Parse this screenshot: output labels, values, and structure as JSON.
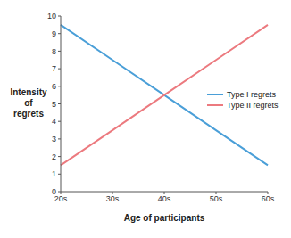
{
  "chart_data": {
    "type": "line",
    "x_label": "Age of participants",
    "y_label": "Intensity of regrets",
    "categories": [
      "20s",
      "30s",
      "40s",
      "50s",
      "60s"
    ],
    "series": [
      {
        "name": "Type I regrets",
        "color": "#4a9fd8",
        "values": [
          9.5,
          7.5,
          5.5,
          3.5,
          1.5
        ]
      },
      {
        "name": "Type II regrets",
        "color": "#ec7a7f",
        "values": [
          1.5,
          3.5,
          5.5,
          7.5,
          9.5
        ]
      }
    ],
    "ylim": [
      0,
      10
    ],
    "yticks": [
      0,
      1,
      2,
      3,
      4,
      5,
      6,
      7,
      8,
      9,
      10
    ],
    "legend": "right"
  }
}
